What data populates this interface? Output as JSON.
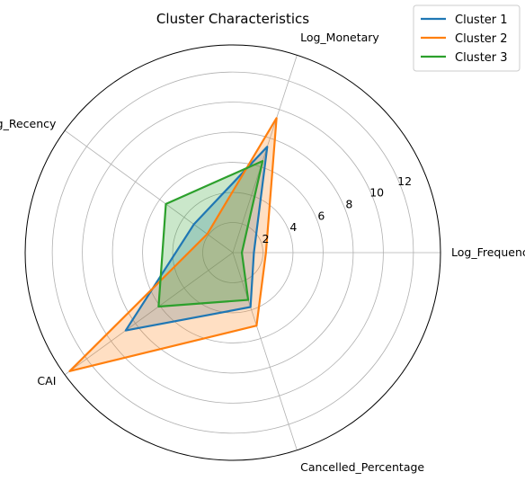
{
  "chart_data": {
    "type": "radar",
    "title": "Cluster Characteristics",
    "axes": [
      "Log_Frequency",
      "Log_Monetary",
      "Log_Recency",
      "CAI",
      "Cancelled_Percentage"
    ],
    "radial_ticks": [
      2,
      4,
      6,
      8,
      10,
      12
    ],
    "rlim": [
      0,
      13.8
    ],
    "grid": true,
    "legend_position": "top-right",
    "series": [
      {
        "name": "Cluster 1",
        "color": "#1f77b4",
        "values": [
          1.4,
          7.4,
          3.2,
          8.8,
          3.8
        ]
      },
      {
        "name": "Cluster 2",
        "color": "#ff7f0e",
        "values": [
          2.2,
          9.4,
          2.1,
          13.4,
          5.1
        ]
      },
      {
        "name": "Cluster 3",
        "color": "#2ca02c",
        "values": [
          0.6,
          6.4,
          5.5,
          6.1,
          3.3
        ]
      }
    ]
  }
}
